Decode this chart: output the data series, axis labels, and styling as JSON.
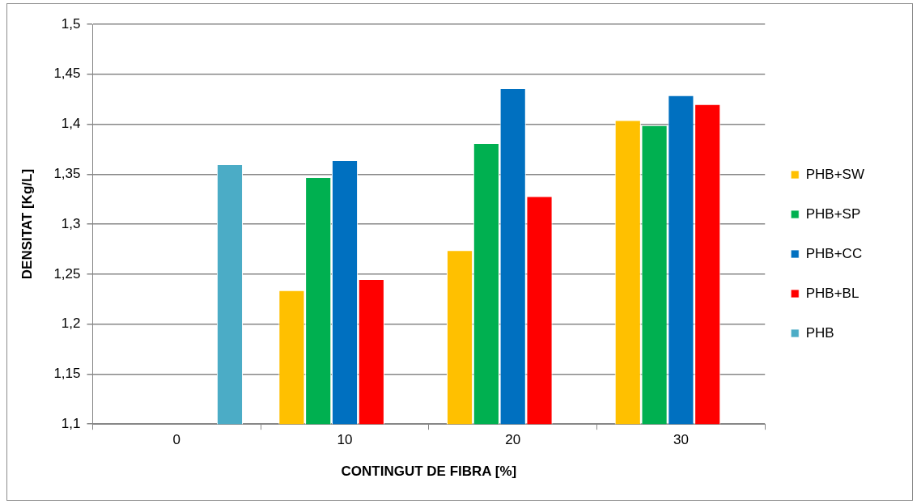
{
  "chart_data": {
    "type": "bar",
    "xlabel": "CONTINGUT DE FIBRA [%]",
    "ylabel": "DENSITAT [Kg/L]",
    "categories": [
      "0",
      "10",
      "20",
      "30"
    ],
    "series": [
      {
        "name": "PHB+SW",
        "color": "#ffc000",
        "values": [
          null,
          1.234,
          1.274,
          1.404
        ]
      },
      {
        "name": "PHB+SP",
        "color": "#00b050",
        "values": [
          null,
          1.347,
          1.381,
          1.399
        ]
      },
      {
        "name": "PHB+CC",
        "color": "#0070c0",
        "values": [
          null,
          1.364,
          1.436,
          1.429
        ]
      },
      {
        "name": "PHB+BL",
        "color": "#ff0000",
        "values": [
          null,
          1.245,
          1.328,
          1.42
        ]
      },
      {
        "name": "PHB",
        "color": "#4bacc6",
        "values": [
          1.36,
          null,
          null,
          null
        ]
      }
    ],
    "ylim": [
      1.1,
      1.5
    ],
    "yticks": [
      {
        "value": 1.1,
        "label": "1,1"
      },
      {
        "value": 1.15,
        "label": "1,15"
      },
      {
        "value": 1.2,
        "label": "1,2"
      },
      {
        "value": 1.25,
        "label": "1,25"
      },
      {
        "value": 1.3,
        "label": "1,3"
      },
      {
        "value": 1.35,
        "label": "1,35"
      },
      {
        "value": 1.4,
        "label": "1,4"
      },
      {
        "value": 1.45,
        "label": "1,45"
      },
      {
        "value": 1.5,
        "label": "1,5"
      }
    ],
    "grid": "y",
    "legend": "right"
  }
}
